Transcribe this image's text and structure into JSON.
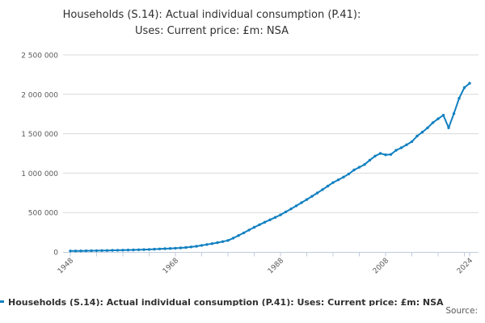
{
  "title": {
    "line1": "Households (S.14): Actual individual consumption (P.41):",
    "line2": "Uses: Current price: £m: NSA"
  },
  "legend": {
    "label": "Households (S.14): Actual individual consumption (P.41): Uses: Current price: £m: NSA"
  },
  "source": {
    "label": "Source:"
  },
  "colors": {
    "line": "#1180c1",
    "grid": "#d9d9d9",
    "axis": "#c0cbdc",
    "tick_text": "#595959",
    "title_text": "#303030"
  },
  "chart_data": {
    "type": "line",
    "title": "Households (S.14): Actual individual consumption (P.41): Uses: Current price: £m: NSA",
    "xlabel": "",
    "ylabel": "",
    "ylim": [
      0,
      2500000
    ],
    "ytick_step": 500000,
    "ytick_labels": [
      "0",
      "500 000",
      "1 000 000",
      "1 500 000",
      "2 000 000",
      "2 500 000"
    ],
    "xlim": [
      1948,
      2024
    ],
    "xtick_interval_years": 5,
    "xtick_labels_shown": [
      1948,
      1968,
      1988,
      2008,
      2024
    ],
    "grid": "horizontal",
    "legend_position": "bottom-left",
    "marker": "circle",
    "x": [
      1948,
      1949,
      1950,
      1951,
      1952,
      1953,
      1954,
      1955,
      1956,
      1957,
      1958,
      1959,
      1960,
      1961,
      1962,
      1963,
      1964,
      1965,
      1966,
      1967,
      1968,
      1969,
      1970,
      1971,
      1972,
      1973,
      1974,
      1975,
      1976,
      1977,
      1978,
      1979,
      1980,
      1981,
      1982,
      1983,
      1984,
      1985,
      1986,
      1987,
      1988,
      1989,
      1990,
      1991,
      1992,
      1993,
      1994,
      1995,
      1996,
      1997,
      1998,
      1999,
      2000,
      2001,
      2002,
      2003,
      2004,
      2005,
      2006,
      2007,
      2008,
      2009,
      2010,
      2011,
      2012,
      2013,
      2014,
      2015,
      2016,
      2017,
      2018,
      2019,
      2020,
      2021,
      2022,
      2023,
      2024
    ],
    "series": [
      {
        "name": "Households (S.14): Actual individual consumption (P.41): Uses: Current price: £m: NSA",
        "values": [
          12000,
          12600,
          13300,
          14300,
          15300,
          16200,
          17200,
          18600,
          20000,
          21400,
          22800,
          24300,
          26000,
          28000,
          30000,
          32200,
          34800,
          37600,
          40600,
          43900,
          47500,
          51500,
          56500,
          63500,
          72000,
          83000,
          94000,
          106000,
          118000,
          131000,
          145000,
          175000,
          208000,
          242000,
          278000,
          313000,
          345000,
          377000,
          408000,
          439000,
          470000,
          508000,
          546000,
          585000,
          625000,
          665000,
          706000,
          748000,
          791000,
          835000,
          880000,
          915000,
          950000,
          990000,
          1040000,
          1075000,
          1110000,
          1165000,
          1216000,
          1250000,
          1233000,
          1237000,
          1290000,
          1322000,
          1360000,
          1400000,
          1470000,
          1520000,
          1575000,
          1640000,
          1690000,
          1735000,
          1575000,
          1755000,
          1950000,
          2085000,
          2140000
        ]
      }
    ]
  }
}
